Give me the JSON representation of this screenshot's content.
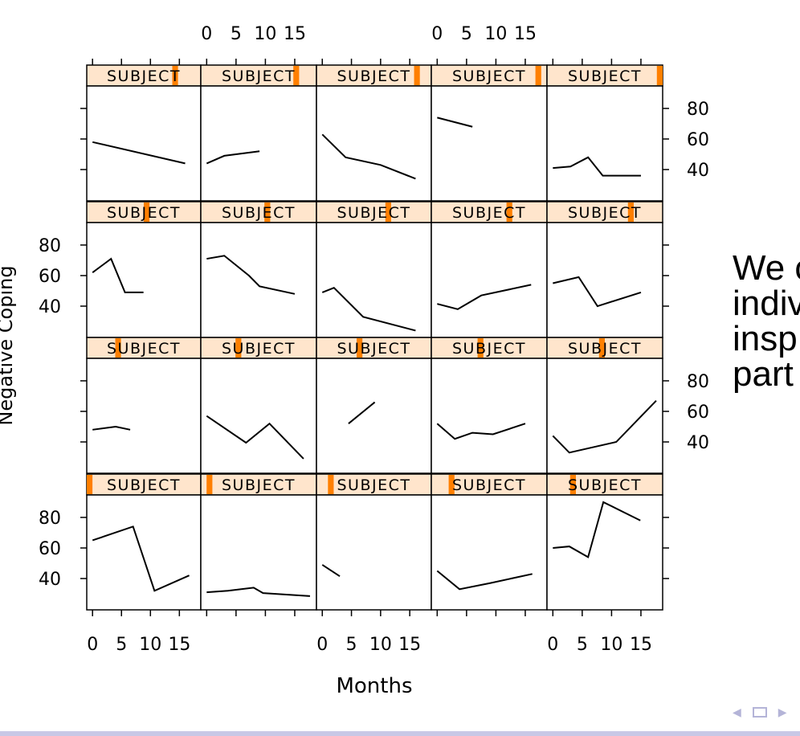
{
  "chart_data": {
    "type": "line",
    "layout": "trellis 5 columns x 4 rows",
    "strip_label": "SUBJECT",
    "strip_colors": {
      "background": "#ffe5cc",
      "indicator": "#ff7f00"
    },
    "xlabel": "Months",
    "ylabel": "Negative Coping",
    "xlim": [
      -1,
      18.7
    ],
    "ylim": [
      19.5,
      94.7
    ],
    "xticks": [
      0,
      5,
      10,
      15
    ],
    "yticks": [
      40,
      60,
      80
    ],
    "xtick_labels": [
      "0",
      "5",
      "10",
      "15"
    ],
    "ytick_labels": [
      "40",
      "60",
      "80"
    ],
    "panels": [
      {
        "level": 16,
        "x": [
          0,
          16
        ],
        "y": [
          58,
          44
        ]
      },
      {
        "level": 17,
        "x": [
          0,
          3,
          9
        ],
        "y": [
          44,
          49,
          52
        ]
      },
      {
        "level": 18,
        "x": [
          0,
          4,
          10,
          16
        ],
        "y": [
          63,
          48,
          43,
          34
        ]
      },
      {
        "level": 19,
        "x": [
          0,
          6
        ],
        "y": [
          74,
          68
        ]
      },
      {
        "level": 20,
        "x": [
          0,
          3,
          6,
          8.5,
          15
        ],
        "y": [
          41,
          42,
          48,
          36,
          36
        ]
      },
      {
        "level": 11,
        "x": [
          0,
          3.2,
          5.6,
          8.8
        ],
        "y": [
          62,
          71,
          49,
          49
        ]
      },
      {
        "level": 12,
        "x": [
          0,
          3,
          7.2,
          9,
          15
        ],
        "y": [
          71,
          73,
          60,
          53,
          48
        ]
      },
      {
        "level": 13,
        "x": [
          0,
          2,
          7,
          16
        ],
        "y": [
          49,
          52,
          33,
          24
        ]
      },
      {
        "level": 14,
        "x": [
          0,
          3.5,
          7.5,
          16
        ],
        "y": [
          41.5,
          38,
          47,
          54
        ]
      },
      {
        "level": 15,
        "x": [
          0,
          4.4,
          7.6,
          15
        ],
        "y": [
          55,
          59,
          40,
          49
        ]
      },
      {
        "level": 6,
        "x": [
          0,
          4,
          6.5
        ],
        "y": [
          48,
          50,
          48
        ]
      },
      {
        "level": 7,
        "x": [
          0,
          6.7,
          10.7,
          16.5
        ],
        "y": [
          57,
          39.5,
          52,
          29
        ]
      },
      {
        "level": 8,
        "x": [
          4.5,
          9
        ],
        "y": [
          52,
          66
        ]
      },
      {
        "level": 9,
        "x": [
          0,
          3,
          6,
          9.5,
          15
        ],
        "y": [
          52,
          42,
          46,
          45,
          52
        ]
      },
      {
        "level": 10,
        "x": [
          0,
          2.8,
          10.8,
          17.6
        ],
        "y": [
          44,
          33,
          40,
          67
        ]
      },
      {
        "level": 1,
        "x": [
          0,
          7,
          10.7,
          16.7
        ],
        "y": [
          65,
          74,
          32,
          42
        ]
      },
      {
        "level": 2,
        "x": [
          0,
          3.6,
          8,
          9.6,
          17.6
        ],
        "y": [
          31,
          32,
          34,
          30.5,
          28.5
        ]
      },
      {
        "level": 3,
        "x": [
          0,
          3
        ],
        "y": [
          49,
          41.5
        ]
      },
      {
        "level": 4,
        "x": [
          0,
          3.8,
          9,
          16.2
        ],
        "y": [
          45,
          33,
          37,
          43
        ]
      },
      {
        "level": 5,
        "x": [
          0,
          2.8,
          6,
          8.6,
          14.9
        ],
        "y": [
          60,
          61,
          54,
          90,
          78
        ]
      }
    ],
    "n_levels": 20
  },
  "slide": {
    "text_lines": [
      "We c",
      "indiv",
      "insp",
      "part"
    ],
    "nav": {
      "prev": "◀",
      "next": "▶"
    }
  }
}
